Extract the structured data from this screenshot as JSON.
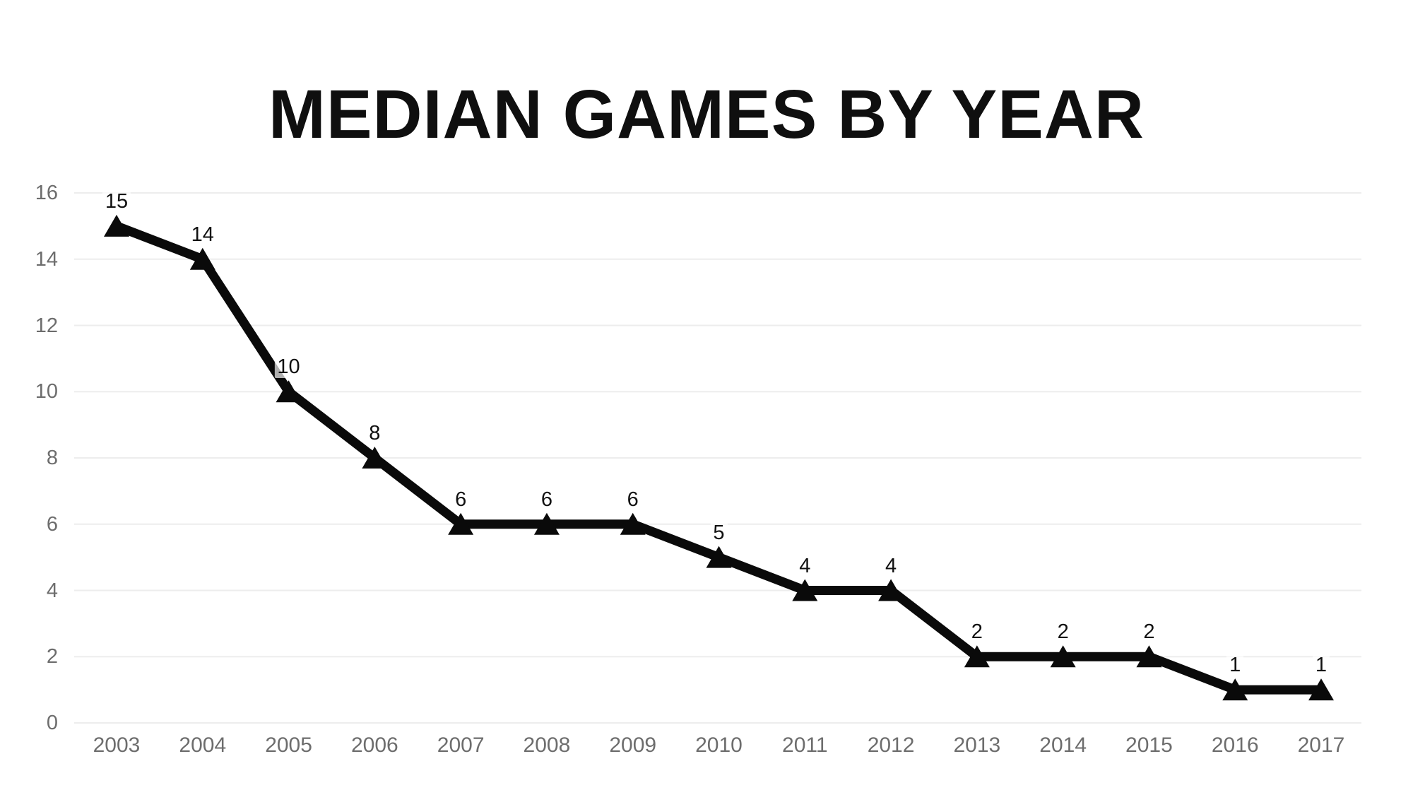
{
  "chart_data": {
    "type": "line",
    "title": "MEDIAN GAMES BY YEAR",
    "categories": [
      "2003",
      "2004",
      "2005",
      "2006",
      "2007",
      "2008",
      "2009",
      "2010",
      "2011",
      "2012",
      "2013",
      "2014",
      "2015",
      "2016",
      "2017"
    ],
    "values": [
      15,
      14,
      10,
      8,
      6,
      6,
      6,
      5,
      4,
      4,
      2,
      2,
      2,
      1,
      1
    ],
    "xlabel": "",
    "ylabel": "",
    "ylim": [
      0,
      16
    ],
    "ytick_step": 2,
    "yticks": [
      0,
      2,
      4,
      6,
      8,
      10,
      12,
      14,
      16
    ],
    "grid": true,
    "legend": false,
    "data_labels": true,
    "marker": "triangle-up",
    "colors": {
      "line": "#0a0a0a",
      "marker": "#0a0a0a",
      "title": "#0f0f0f",
      "data_label": "#111111",
      "axis_label": "#6d6d6d",
      "gridline": "#ededed",
      "background": "#ffffff"
    }
  }
}
